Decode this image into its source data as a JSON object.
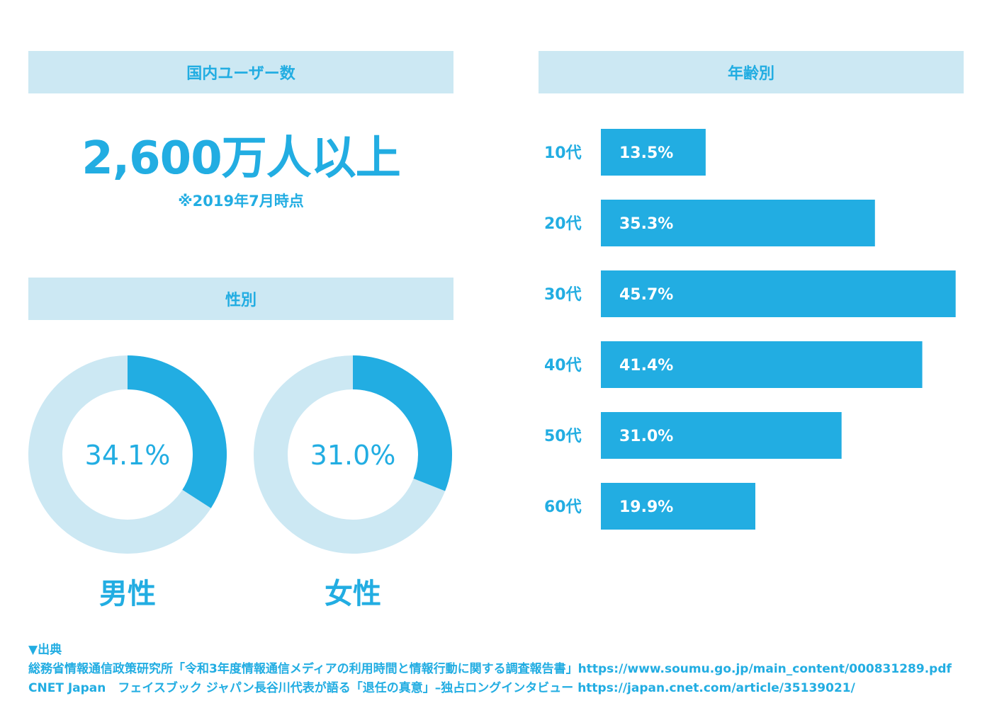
{
  "users": {
    "header": "国内ユーザー数",
    "value": "2,600万人以上",
    "note": "※2019年7月時点"
  },
  "gender": {
    "header": "性別"
  },
  "age": {
    "header": "年齢別"
  },
  "sources": {
    "heading": "▼出典",
    "line1": "総務省情報通信政策研究所「令和3年度情報通信メディアの利用時間と情報行動に関する調査報告書」https://www.soumu.go.jp/main_content/000831289.pdf",
    "line2": "CNET Japan　フェイスブック ジャパン長谷川代表が語る「退任の真意」–独占ロングインタビュー https://japan.cnet.com/article/35139021/"
  },
  "colors": {
    "primary": "#22ade2",
    "light": "#cce8f3"
  },
  "chart_data": [
    {
      "type": "pie",
      "variant": "donut",
      "label": "男性",
      "value": 34.1,
      "value_label": "34.1%"
    },
    {
      "type": "pie",
      "variant": "donut",
      "label": "女性",
      "value": 31.0,
      "value_label": "31.0%"
    },
    {
      "type": "bar",
      "orientation": "horizontal",
      "categories": [
        "10代",
        "20代",
        "30代",
        "40代",
        "50代",
        "60代"
      ],
      "values": [
        13.5,
        35.3,
        45.7,
        41.4,
        31.0,
        19.9
      ],
      "value_labels": [
        "13.5%",
        "35.3%",
        "45.7%",
        "41.4%",
        "31.0%",
        "19.9%"
      ],
      "xlim": [
        0,
        46
      ]
    }
  ]
}
